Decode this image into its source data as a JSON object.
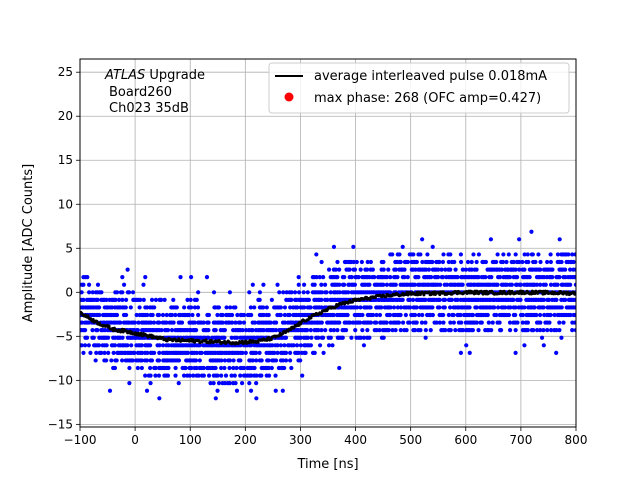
{
  "chart_data": {
    "type": "scatter",
    "xlabel": "Time [ns]",
    "ylabel": "Amplitude [ADC Counts]",
    "xlim": [
      -100,
      800
    ],
    "ylim": [
      -15.3,
      26.5
    ],
    "x_ticks": [
      -100,
      0,
      100,
      200,
      300,
      400,
      500,
      600,
      700,
      800
    ],
    "y_ticks": [
      -15,
      -10,
      -5,
      0,
      5,
      10,
      15,
      20,
      25
    ],
    "grid": true,
    "annotation": {
      "line1_italic": "ATLAS",
      "line1_rest": " Upgrade",
      "line2": "Board260",
      "line3": "Ch023 35dB"
    },
    "legend": {
      "placement": "top-right",
      "entries": [
        {
          "label": "average interleaved pulse 0.018mA",
          "marker": "line",
          "color": "#000000"
        },
        {
          "label": "max phase: 268 (OFC amp=0.427)",
          "marker": "dot",
          "color": "#ff0000"
        }
      ]
    },
    "series": [
      {
        "role": "samples",
        "color": "#0000ff",
        "x_range": [
          -100,
          800
        ],
        "adc_step": 0.86,
        "mean_curve": {
          "x": [
            -100,
            -70,
            -40,
            -10,
            20,
            60,
            100,
            140,
            180,
            220,
            250,
            280,
            310,
            340,
            370,
            400,
            430,
            460,
            500,
            550,
            600,
            650,
            700,
            750,
            800
          ],
          "y": [
            -2.3,
            -3.4,
            -4.2,
            -4.5,
            -4.9,
            -5.4,
            -5.5,
            -5.6,
            -5.7,
            -5.6,
            -5.2,
            -4.3,
            -3.1,
            -2.2,
            -1.4,
            -0.9,
            -0.6,
            -0.35,
            -0.15,
            -0.1,
            0.0,
            -0.05,
            0.0,
            -0.05,
            -0.1
          ]
        },
        "band_half_width_ADC": 4.3
      },
      {
        "role": "average",
        "color": "#000000",
        "x": [
          -100,
          -70,
          -40,
          -10,
          20,
          60,
          100,
          140,
          180,
          220,
          250,
          280,
          310,
          340,
          370,
          400,
          430,
          460,
          500,
          550,
          600,
          650,
          700,
          750,
          800
        ],
        "y": [
          -2.3,
          -3.4,
          -4.2,
          -4.5,
          -4.9,
          -5.4,
          -5.5,
          -5.6,
          -5.7,
          -5.6,
          -5.2,
          -4.3,
          -3.1,
          -2.2,
          -1.4,
          -0.9,
          -0.6,
          -0.35,
          -0.15,
          -0.1,
          0.0,
          -0.05,
          0.0,
          -0.05,
          -0.1
        ]
      }
    ]
  }
}
